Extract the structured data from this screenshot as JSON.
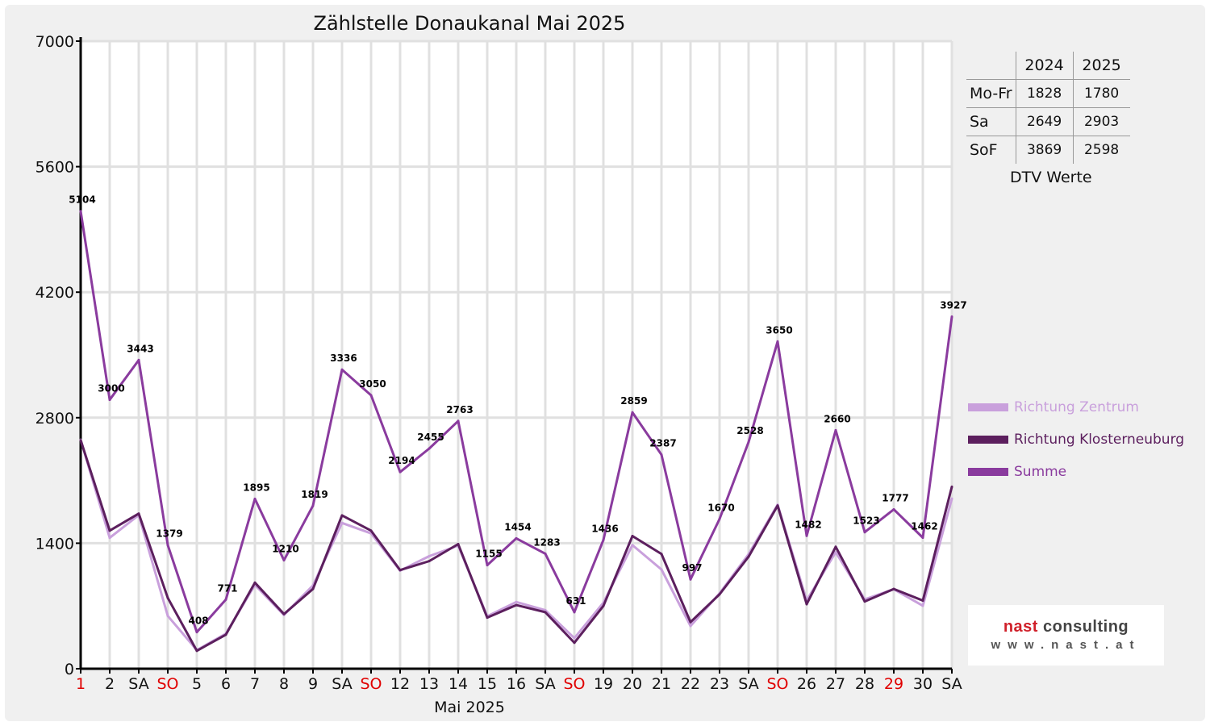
{
  "chart_data": {
    "type": "line",
    "title": "Zählstelle Donaukanal Mai 2025",
    "xlabel": "Mai 2025",
    "ylabel": "",
    "ylim": [
      0,
      7000
    ],
    "yticks": [
      0,
      1400,
      2800,
      4200,
      5600,
      7000
    ],
    "grid": true,
    "legend_position": "right",
    "categories": [
      "1",
      "2",
      "SA",
      "SO",
      "5",
      "6",
      "7",
      "8",
      "9",
      "SA",
      "SO",
      "12",
      "13",
      "14",
      "15",
      "16",
      "SA",
      "SO",
      "19",
      "20",
      "21",
      "22",
      "23",
      "SA",
      "SO",
      "26",
      "27",
      "28",
      "29",
      "30",
      "SA"
    ],
    "red_categories": [
      0,
      3,
      10,
      17,
      24,
      28
    ],
    "series": [
      {
        "name": "Richtung Zentrum",
        "color": "#c9a0dc",
        "values": [
          2554,
          1460,
          1713,
          589,
          208,
          391,
          935,
          600,
          929,
          1626,
          1510,
          1094,
          1255,
          1373,
          585,
          744,
          653,
          341,
          736,
          1379,
          1107,
          477,
          840,
          1278,
          1830,
          762,
          1300,
          773,
          887,
          702,
          1897
        ]
      },
      {
        "name": "Richtung Klosterneuburg",
        "color": "#5c1f5e",
        "values": [
          2550,
          1540,
          1730,
          790,
          200,
          380,
          960,
          610,
          890,
          1710,
          1540,
          1100,
          1200,
          1390,
          570,
          710,
          630,
          290,
          700,
          1480,
          1280,
          520,
          830,
          1250,
          1820,
          720,
          1360,
          750,
          890,
          760,
          2030
        ]
      },
      {
        "name": "Summe",
        "color": "#8a3b9e",
        "labels": true,
        "values": [
          5104,
          3000,
          3443,
          1379,
          408,
          771,
          1895,
          1210,
          1819,
          3336,
          3050,
          2194,
          2455,
          2763,
          1155,
          1454,
          1283,
          631,
          1436,
          2859,
          2387,
          997,
          1670,
          2528,
          3650,
          1482,
          2660,
          1523,
          1777,
          1462,
          3927
        ]
      }
    ]
  },
  "dtv_table": {
    "headers": [
      "",
      "2024",
      "2025"
    ],
    "rows": [
      [
        "Mo-Fr",
        "1828",
        "1780"
      ],
      [
        "Sa",
        "2649",
        "2903"
      ],
      [
        "SoF",
        "3869",
        "2598"
      ]
    ],
    "caption": "DTV Werte"
  },
  "logo": {
    "line1": "nast consulting",
    "line2": "www.nast.at"
  }
}
